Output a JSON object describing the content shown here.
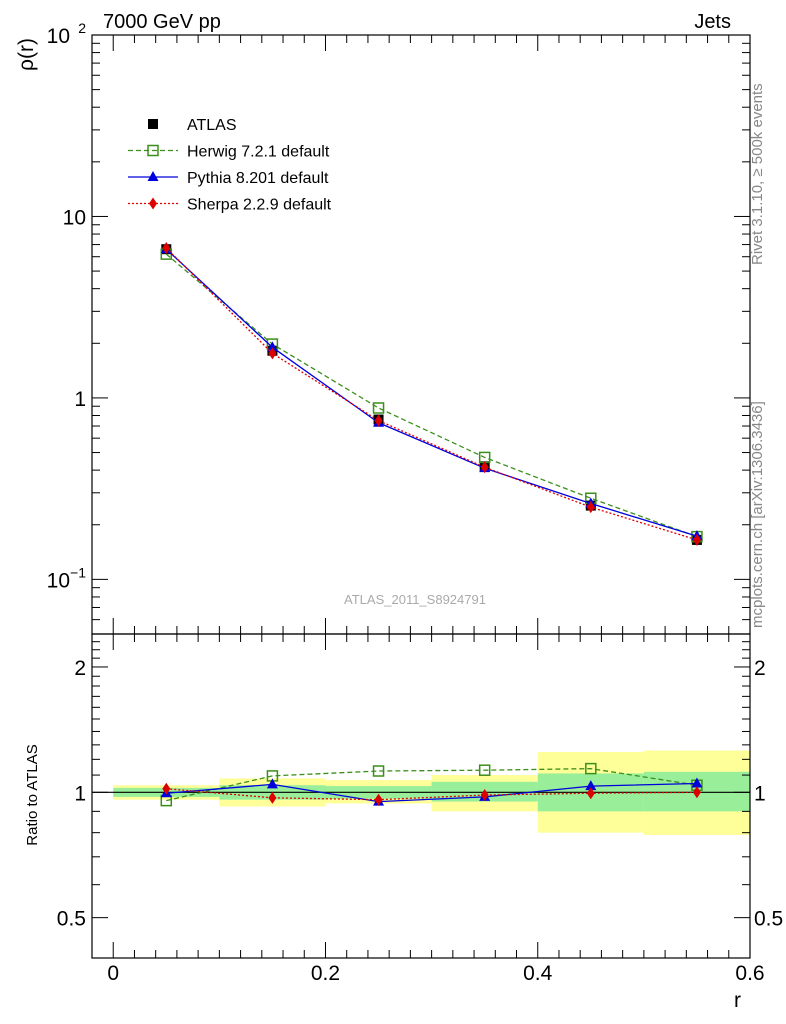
{
  "header": {
    "left": "7000 GeV pp",
    "right": "Jets",
    "side_rivet": "Rivet 3.1.10, ≥ 500k events",
    "side_mcplots": "mcplots.cern.ch [arXiv:1306.3436]",
    "analysis_label": "ATLAS_2011_S8924791"
  },
  "chart_data": [
    {
      "type": "line",
      "panel": "main",
      "ylabel": "ρ(r)",
      "yscale": "log",
      "ylim": [
        0.05,
        100
      ],
      "xlim": [
        -0.02,
        0.6
      ],
      "yticks": [
        {
          "value": 0.1,
          "base": "10",
          "exp": "−1"
        },
        {
          "value": 1,
          "base": "1",
          "exp": ""
        },
        {
          "value": 10,
          "base": "10",
          "exp": ""
        },
        {
          "value": 100,
          "base": "10",
          "exp": "2"
        }
      ],
      "legend_position": "top-left",
      "x": [
        0.05,
        0.15,
        0.25,
        0.35,
        0.45,
        0.55
      ],
      "series": [
        {
          "name": "ATLAS",
          "values": [
            6.6,
            1.82,
            0.76,
            0.42,
            0.255,
            0.165
          ],
          "color": "#000000",
          "marker": "square",
          "style": "points"
        },
        {
          "name": "Herwig 7.2.1 default",
          "values": [
            6.2,
            1.98,
            0.88,
            0.47,
            0.28,
            0.172
          ],
          "color": "#3a8f1a",
          "marker": "open-square",
          "style": "dashed"
        },
        {
          "name": "Pythia 8.201 default",
          "values": [
            6.6,
            1.9,
            0.73,
            0.41,
            0.262,
            0.173
          ],
          "color": "#0000dd",
          "marker": "triangle",
          "style": "solid"
        },
        {
          "name": "Sherpa 2.2.9 default",
          "values": [
            6.7,
            1.76,
            0.75,
            0.415,
            0.25,
            0.165
          ],
          "color": "#dd0000",
          "marker": "diamond",
          "style": "dotted"
        }
      ]
    },
    {
      "type": "line",
      "panel": "ratio",
      "ylabel": "Ratio to ATLAS",
      "xlabel": "r",
      "yscale": "log",
      "ylim": [
        0.4,
        2.4
      ],
      "xlim": [
        -0.02,
        0.6
      ],
      "xticks": [
        "0",
        "0.2",
        "0.4",
        "0.6"
      ],
      "xtick_values": [
        0,
        0.2,
        0.4,
        0.6
      ],
      "yticks": [
        "0.5",
        "1",
        "2"
      ],
      "ytick_values": [
        0.5,
        1,
        2
      ],
      "bins": [
        {
          "x": [
            0.0,
            0.1
          ],
          "stat": [
            0.975,
            1.025
          ],
          "total": [
            0.96,
            1.04
          ]
        },
        {
          "x": [
            0.1,
            0.2
          ],
          "stat": [
            0.96,
            1.04
          ],
          "total": [
            0.925,
            1.08
          ]
        },
        {
          "x": [
            0.2,
            0.3
          ],
          "stat": [
            0.965,
            1.035
          ],
          "total": [
            0.94,
            1.07
          ]
        },
        {
          "x": [
            0.3,
            0.4
          ],
          "stat": [
            0.95,
            1.06
          ],
          "total": [
            0.9,
            1.1
          ]
        },
        {
          "x": [
            0.4,
            0.5
          ],
          "stat": [
            0.9,
            1.11
          ],
          "total": [
            0.8,
            1.25
          ]
        },
        {
          "x": [
            0.5,
            0.6
          ],
          "stat": [
            0.9,
            1.12
          ],
          "total": [
            0.79,
            1.26
          ]
        }
      ],
      "x": [
        0.05,
        0.15,
        0.25,
        0.35,
        0.45,
        0.55
      ],
      "series": [
        {
          "name": "Herwig 7.2.1 default",
          "values": [
            0.955,
            1.095,
            1.125,
            1.13,
            1.14,
            1.04
          ],
          "color": "#3a8f1a",
          "marker": "open-square",
          "style": "dashed"
        },
        {
          "name": "Pythia 8.201 default",
          "values": [
            0.995,
            1.045,
            0.95,
            0.975,
            1.035,
            1.05
          ],
          "color": "#0000dd",
          "marker": "triangle",
          "style": "solid"
        },
        {
          "name": "Sherpa 2.2.9 default",
          "values": [
            1.02,
            0.97,
            0.96,
            0.985,
            0.995,
            1.0
          ],
          "color": "#dd0000",
          "marker": "diamond",
          "style": "dotted"
        }
      ]
    }
  ]
}
